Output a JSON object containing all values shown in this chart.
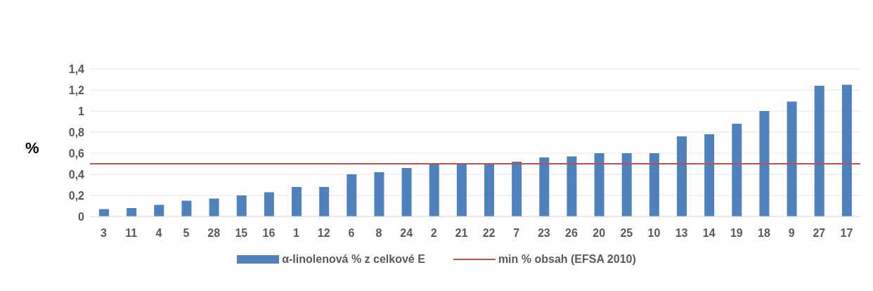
{
  "chart_data": {
    "type": "bar",
    "ylabel": "%",
    "categories": [
      "3",
      "11",
      "4",
      "5",
      "28",
      "15",
      "16",
      "1",
      "12",
      "6",
      "8",
      "24",
      "2",
      "21",
      "22",
      "7",
      "23",
      "26",
      "20",
      "25",
      "10",
      "13",
      "14",
      "19",
      "18",
      "9",
      "27",
      "17"
    ],
    "series": [
      {
        "name": "α-linolenová % z celkové E",
        "color": "#4f81bd",
        "values": [
          0.07,
          0.08,
          0.11,
          0.15,
          0.17,
          0.2,
          0.23,
          0.28,
          0.28,
          0.4,
          0.42,
          0.46,
          0.5,
          0.5,
          0.5,
          0.52,
          0.56,
          0.57,
          0.6,
          0.6,
          0.6,
          0.76,
          0.78,
          0.88,
          1.0,
          1.09,
          1.24,
          1.25
        ]
      }
    ],
    "ylim": [
      0,
      1.4
    ],
    "yticks": [
      0,
      {
        "value": 0.2,
        "label": "0,2"
      },
      {
        "value": 0.4,
        "label": "0,4"
      },
      {
        "value": 0.6,
        "label": "0,6"
      },
      {
        "value": 0.8,
        "label": "0,8"
      },
      1,
      {
        "value": 1.2,
        "label": "1,2"
      },
      {
        "value": 1.4,
        "label": "1,4"
      }
    ],
    "ref_lines": [
      {
        "axis": "y",
        "value": 0.5,
        "label": "min % obsah (EFSA 2010)",
        "color": "#c0504d"
      }
    ],
    "grid": "y",
    "legend": "bottom"
  }
}
